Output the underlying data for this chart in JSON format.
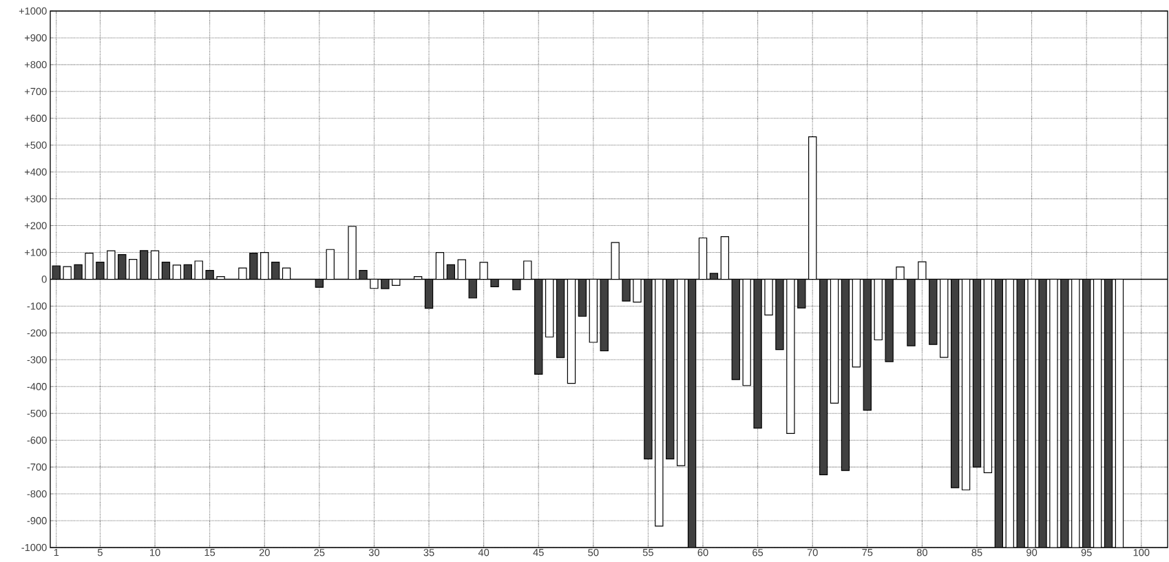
{
  "chart_data": {
    "type": "bar",
    "series": [
      {
        "color": "#404040",
        "x": [
          1,
          3,
          5,
          7,
          9,
          11,
          13,
          15,
          19,
          21,
          25,
          29,
          31,
          35,
          37,
          39,
          41,
          43,
          45,
          47,
          49,
          51,
          53,
          55,
          57,
          59,
          61,
          63,
          65,
          67,
          69,
          71,
          73,
          75,
          77,
          79,
          81,
          83,
          85,
          87,
          89,
          91,
          93,
          95,
          97
        ],
        "values": [
          50,
          54,
          64,
          92,
          107,
          64,
          54,
          33,
          97,
          64,
          -30,
          33,
          -35,
          -108,
          54,
          -70,
          -28,
          -39,
          -354,
          -292,
          -138,
          -267,
          -81,
          -670,
          -670,
          -1000,
          22,
          -374,
          -555,
          -262,
          -107,
          -729,
          -713,
          -488,
          -307,
          -248,
          -243,
          -777,
          -700,
          -1000,
          -1000,
          -1000,
          -1000,
          -1000,
          -1000
        ]
      },
      {
        "color": "#ffffff",
        "x": [
          2,
          4,
          6,
          8,
          10,
          12,
          14,
          16,
          18,
          20,
          22,
          26,
          28,
          30,
          32,
          34,
          36,
          38,
          40,
          44,
          46,
          48,
          50,
          52,
          54,
          56,
          58,
          60,
          62,
          64,
          66,
          68,
          70,
          72,
          74,
          76,
          78,
          80,
          82,
          84,
          86,
          88,
          90,
          92,
          94,
          96,
          98
        ],
        "values": [
          47,
          97,
          106,
          74,
          106,
          53,
          68,
          10,
          42,
          100,
          42,
          111,
          197,
          -34,
          -23,
          10,
          100,
          73,
          63,
          68,
          -215,
          -388,
          -235,
          137,
          -85,
          -920,
          -695,
          154,
          159,
          -396,
          -133,
          -575,
          531,
          -462,
          -327,
          -226,
          46,
          65,
          -291,
          -785,
          -721,
          -1000,
          -1000,
          -1000,
          -1000,
          -1000,
          -1000
        ]
      }
    ],
    "xlim": [
      0.45,
      102.4
    ],
    "xticks": [
      1,
      5,
      10,
      15,
      20,
      25,
      30,
      35,
      40,
      45,
      50,
      55,
      60,
      65,
      70,
      75,
      80,
      85,
      90,
      95,
      100
    ],
    "ylim": [
      -1000,
      1000
    ],
    "yticks": [
      -1000,
      -900,
      -800,
      -700,
      -600,
      -500,
      -400,
      -300,
      -200,
      -100,
      0,
      {
        "value": 100,
        "label": "+100"
      },
      {
        "value": 200,
        "label": "+200"
      },
      {
        "value": 300,
        "label": "+300"
      },
      {
        "value": 400,
        "label": "+400"
      },
      {
        "value": 500,
        "label": "+500"
      },
      {
        "value": 600,
        "label": "+600"
      },
      {
        "value": 700,
        "label": "+700"
      },
      {
        "value": 800,
        "label": "+800"
      },
      {
        "value": 900,
        "label": "+900"
      },
      {
        "value": 1000,
        "label": "+1000"
      }
    ],
    "grid": true
  }
}
